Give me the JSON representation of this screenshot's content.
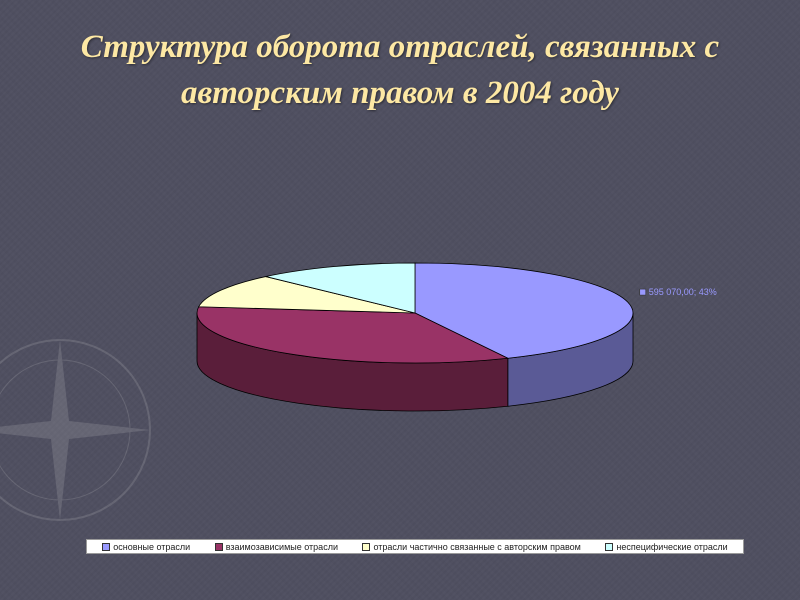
{
  "slide": {
    "title_line1": "Структура оборота отраслей, связанных с",
    "title_line2": "авторским правом в 2004 году"
  },
  "colors": {
    "background": "#4f4f60",
    "title": "#fde8a4"
  },
  "chart_data": {
    "type": "pie",
    "style": "3d",
    "title": "",
    "start_angle_deg": 90,
    "series": [
      {
        "category": "основные отрасли",
        "value": 43,
        "data_label": "595 070,00; 43%",
        "color": "#9999ff",
        "side_color": "#5a5a96"
      },
      {
        "category": "взаимозависимые отрасли",
        "value": 34,
        "data_label": "",
        "color": "#993366",
        "side_color": "#5a1e3a"
      },
      {
        "category": "отрасли частично связанные с авторским правом",
        "value": 11,
        "data_label": "",
        "color": "#ffffcc",
        "side_color": "#b8b894"
      },
      {
        "category": "неспецифические отрасли",
        "value": 12,
        "data_label": "",
        "color": "#ccffff",
        "side_color": "#8fb8b8"
      }
    ],
    "legend_position": "bottom"
  }
}
